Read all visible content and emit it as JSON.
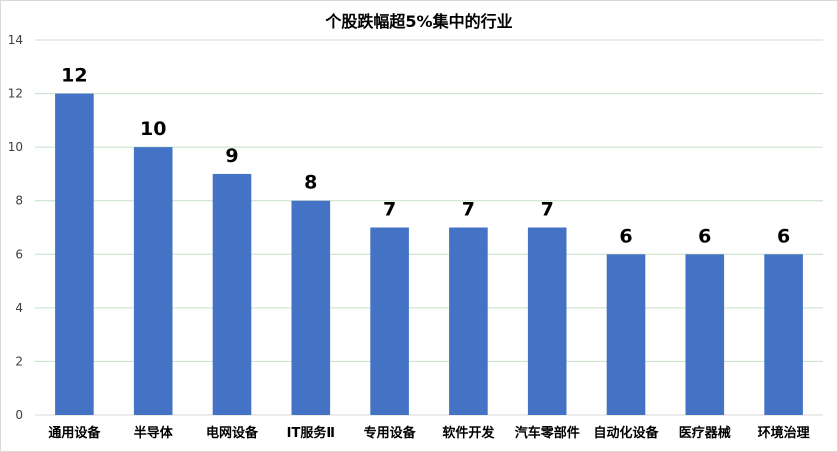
{
  "chart_data": {
    "type": "bar",
    "title": "个股跌幅超5%集中的行业",
    "categories": [
      "通用设备",
      "半导体",
      "电网设备",
      "IT服务Ⅱ",
      "专用设备",
      "软件开发",
      "汽车零部件",
      "自动化设备",
      "医疗器械",
      "环境治理"
    ],
    "values": [
      12,
      10,
      9,
      8,
      7,
      7,
      7,
      6,
      6,
      6
    ],
    "ylim": [
      0,
      14
    ],
    "yticks": [
      0,
      2,
      4,
      6,
      8,
      10,
      12,
      14
    ],
    "grid": true,
    "legend": "none",
    "colors": {
      "bar": "#4472C4",
      "grid": "#c6dfc6",
      "axis": "#d9d9d9"
    }
  }
}
